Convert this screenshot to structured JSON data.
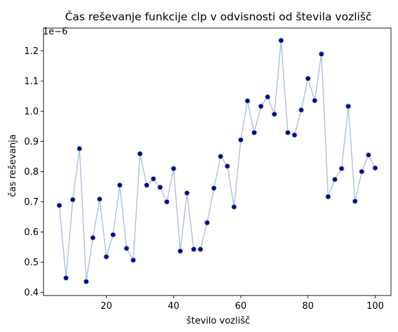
{
  "chart_data": {
    "type": "line",
    "title": "Čas reševanje funkcije clp v odvisnosti od števila vozlišč",
    "xlabel": "število vozlišč",
    "ylabel": "čas reševanja",
    "y_offset_text": "1e−6",
    "xlim": [
      1.3,
      104.7
    ],
    "ylim": [
      0.39,
      1.275
    ],
    "x_ticks": [
      20,
      40,
      60,
      80,
      100
    ],
    "x_tick_labels": [
      "20",
      "40",
      "60",
      "80",
      "100"
    ],
    "y_ticks": [
      0.4,
      0.5,
      0.6,
      0.7,
      0.8,
      0.9,
      1.0,
      1.1,
      1.2
    ],
    "y_tick_labels": [
      "0.4",
      "0.5",
      "0.6",
      "0.7",
      "0.8",
      "0.9",
      "1.0",
      "1.1",
      "1.2"
    ],
    "grid": false,
    "legend": "none",
    "line_color": "#b0c4de",
    "marker_face_color": "#00008b",
    "marker_edge_color": "#b0c4de",
    "series": [
      {
        "x": [
          6,
          8,
          10,
          12,
          14,
          16,
          18,
          20,
          22,
          24,
          26,
          28,
          30,
          32,
          34,
          36,
          38,
          40,
          42,
          44,
          46,
          48,
          50,
          52,
          54,
          56,
          58,
          60,
          62,
          64,
          66,
          68,
          70,
          72,
          74,
          76,
          78,
          80,
          82,
          84,
          86,
          88,
          90,
          92,
          94,
          96,
          98,
          100
        ],
        "values": [
          0.688,
          0.448,
          0.707,
          0.876,
          0.436,
          0.581,
          0.709,
          0.518,
          0.591,
          0.755,
          0.546,
          0.507,
          0.859,
          0.755,
          0.776,
          0.748,
          0.7,
          0.81,
          0.537,
          0.729,
          0.543,
          0.543,
          0.631,
          0.745,
          0.85,
          0.818,
          0.683,
          0.905,
          1.034,
          0.929,
          1.016,
          1.047,
          0.99,
          1.234,
          0.929,
          0.921,
          1.004,
          1.108,
          1.035,
          1.189,
          0.717,
          0.774,
          0.81,
          1.016,
          0.702,
          0.8,
          0.855,
          0.812
        ]
      }
    ]
  }
}
